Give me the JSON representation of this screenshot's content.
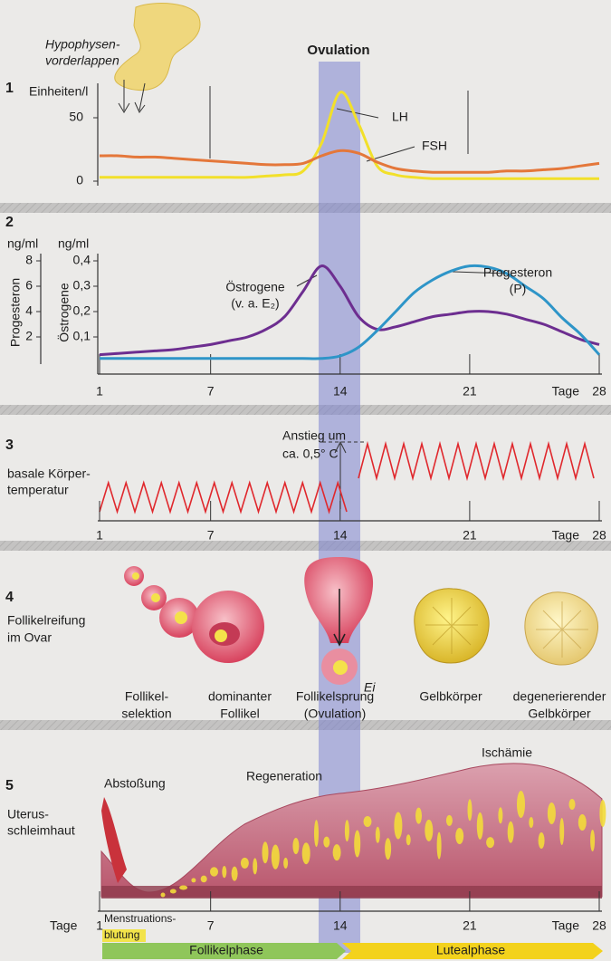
{
  "header": {
    "pituitary": [
      "Hypophysen-",
      "vorderlappen"
    ],
    "ovulation": "Ovulation"
  },
  "chart_data": [
    {
      "type": "line",
      "panel": "1",
      "ylabel": "Einheiten/l",
      "x": [
        1,
        2,
        3,
        4,
        5,
        6,
        7,
        8,
        9,
        10,
        11,
        12,
        13,
        14,
        15,
        16,
        17,
        18,
        19,
        20,
        21,
        22,
        23,
        24,
        25,
        26,
        27,
        28
      ],
      "xlim": [
        1,
        28
      ],
      "ylim": [
        0,
        78
      ],
      "yticks": [
        0,
        50
      ],
      "series": [
        {
          "name": "LH",
          "color": "#f2e02a",
          "values": [
            3,
            3,
            3,
            3,
            3,
            3,
            3,
            3,
            3,
            4,
            5,
            8,
            30,
            70,
            45,
            12,
            5,
            3,
            2,
            2,
            2,
            2,
            2,
            2,
            2,
            2,
            2,
            2
          ]
        },
        {
          "name": "FSH",
          "color": "#e4773a",
          "values": [
            20,
            20,
            19,
            19,
            18,
            17,
            16,
            15,
            14,
            13,
            13,
            14,
            20,
            24,
            22,
            15,
            10,
            8,
            7,
            7,
            7,
            7,
            8,
            8,
            9,
            10,
            12,
            14
          ]
        }
      ]
    },
    {
      "type": "line",
      "panel": "2",
      "ylabel": "Progesteron",
      "yunit": "ng/ml",
      "y2label": "Östrogene",
      "y2unit": "ng/ml",
      "x": [
        1,
        2,
        3,
        4,
        5,
        6,
        7,
        8,
        9,
        10,
        11,
        12,
        13,
        14,
        15,
        16,
        17,
        18,
        19,
        20,
        21,
        22,
        23,
        24,
        25,
        26,
        27,
        28
      ],
      "xlim": [
        1,
        28
      ],
      "xticks": [
        1,
        7,
        14,
        21,
        28
      ],
      "xlabel": "Tage",
      "ylim": [
        0,
        10
      ],
      "yticks": [
        2,
        4,
        6,
        8
      ],
      "y2lim": [
        0,
        0.5
      ],
      "y2ticks": [
        {
          "value": 0.1,
          "label": "0,1"
        },
        {
          "value": 0.2,
          "label": "0,2"
        },
        {
          "value": 0.3,
          "label": "0,3"
        },
        {
          "value": 0.4,
          "label": "0,4"
        }
      ],
      "series": [
        {
          "name": "Östrogene",
          "annotation": "(v. a. E₂)",
          "color": "#6d2e90",
          "axis": "y2",
          "values": [
            0.03,
            0.035,
            0.04,
            0.045,
            0.05,
            0.06,
            0.07,
            0.085,
            0.1,
            0.13,
            0.18,
            0.28,
            0.38,
            0.3,
            0.18,
            0.13,
            0.14,
            0.16,
            0.18,
            0.19,
            0.2,
            0.2,
            0.19,
            0.17,
            0.15,
            0.12,
            0.09,
            0.07
          ]
        },
        {
          "name": "Progesteron",
          "annotation": "(P)",
          "color": "#2e95c8",
          "values": [
            0.3,
            0.3,
            0.3,
            0.3,
            0.3,
            0.3,
            0.3,
            0.3,
            0.3,
            0.3,
            0.3,
            0.3,
            0.3,
            0.5,
            1.2,
            2.5,
            4,
            5.5,
            6.5,
            7.2,
            7.6,
            7.5,
            7,
            6,
            5,
            3.5,
            2.2,
            0.6
          ]
        }
      ]
    }
  ],
  "panel3": {
    "number": "3",
    "label": [
      "basale Körper-",
      "temperatur"
    ],
    "annotation": [
      "Anstieg um",
      "ca. 0,5° C"
    ]
  },
  "panel4": {
    "number": "4",
    "label": [
      "Follikelreifung",
      "im Ovar"
    ],
    "egg": "Ei",
    "stages": [
      {
        "label": [
          "Follikel-",
          "selektion"
        ]
      },
      {
        "label": [
          "dominanter",
          "Follikel"
        ]
      },
      {
        "label": [
          "Follikelsprung",
          "(Ovulation)"
        ]
      },
      {
        "label": [
          "Gelbkörper"
        ]
      },
      {
        "label": [
          "degenerierender",
          "Gelbkörper"
        ]
      }
    ]
  },
  "panel5": {
    "number": "5",
    "label": [
      "Uterus-",
      "schleimhaut"
    ],
    "annotations": [
      "Abstoßung",
      "Regeneration",
      "Ischämie"
    ]
  },
  "phases": {
    "menstruation": [
      "Menstruations-",
      "blutung"
    ],
    "follicular": "Follikelphase",
    "luteal": "Lutealphase"
  }
}
